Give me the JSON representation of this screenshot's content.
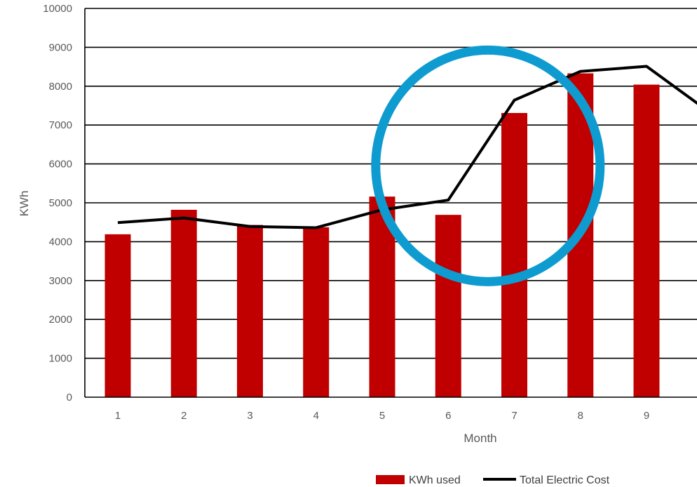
{
  "chart_data": {
    "type": "bar",
    "title": "",
    "xlabel": "Month",
    "ylabel": "KWh",
    "ylim": [
      0,
      10000
    ],
    "yticks": [
      0,
      1000,
      2000,
      3000,
      4000,
      5000,
      6000,
      7000,
      8000,
      9000,
      10000
    ],
    "categories": [
      "1",
      "2",
      "3",
      "4",
      "5",
      "6",
      "7",
      "8",
      "9"
    ],
    "grid": true,
    "legend": "bottom",
    "series": [
      {
        "name": "KWh used",
        "kind": "bar",
        "color": "#c00000",
        "values": [
          4190,
          4820,
          4430,
          4370,
          5160,
          4690,
          7310,
          8330,
          8040
        ]
      },
      {
        "name": "Total Electric Cost",
        "kind": "line",
        "color": "#000000",
        "values": [
          4490,
          4610,
          4390,
          4360,
          4820,
          5070,
          7640,
          8380,
          8510
        ]
      }
    ],
    "annotation": {
      "shape": "circle",
      "color": "#0e9bd0",
      "center": {
        "x": 6.6,
        "y": 5950
      }
    }
  }
}
